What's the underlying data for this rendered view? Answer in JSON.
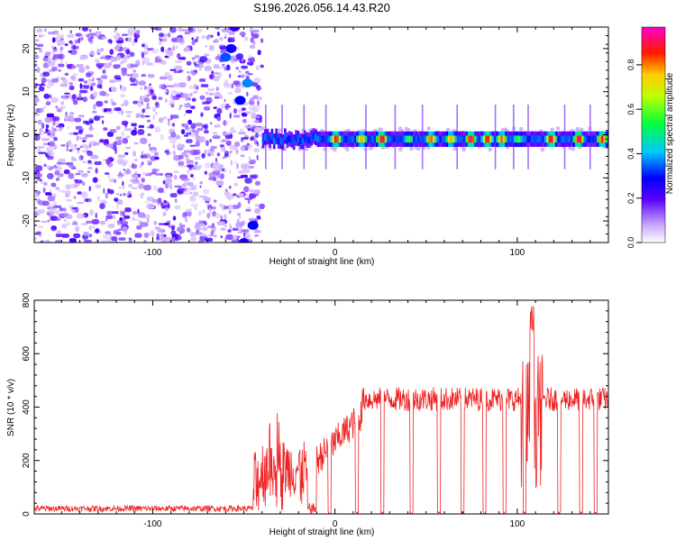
{
  "title": "S196.2026.056.14.43.R20",
  "spectrogram": {
    "type": "heatmap",
    "xlabel": "Height of straight line (km)",
    "ylabel": "Frequency (Hz)",
    "xlim": [
      -165,
      150
    ],
    "ylim": [
      -25,
      25
    ],
    "x_ticks": [
      -100,
      0,
      100
    ],
    "x_tick_labels": [
      "-100",
      "0",
      "100"
    ],
    "y_ticks": [
      -20,
      -10,
      0,
      10,
      20
    ],
    "y_tick_labels": [
      "-20",
      "-10",
      "0",
      "10",
      "20"
    ],
    "noise_region_x": [
      -165,
      -40
    ],
    "signal_region_x": [
      -40,
      150
    ],
    "signal_frequency_hz": -1,
    "peak_amplitude_points": [
      {
        "x": -23,
        "amp": 0.35
      },
      {
        "x": -10,
        "amp": 0.35
      },
      {
        "x": 0,
        "amp": 0.9
      },
      {
        "x": 14,
        "amp": 0.8
      },
      {
        "x": 25,
        "amp": 0.95
      },
      {
        "x": 40,
        "amp": 0.6
      },
      {
        "x": 52,
        "amp": 0.85
      },
      {
        "x": 63,
        "amp": 0.8
      },
      {
        "x": 74,
        "amp": 0.95
      },
      {
        "x": 83,
        "amp": 0.9
      },
      {
        "x": 91,
        "amp": 0.85
      },
      {
        "x": 100,
        "amp": 0.6
      },
      {
        "x": 110,
        "amp": 0.35
      },
      {
        "x": 118,
        "amp": 0.95
      },
      {
        "x": 133,
        "amp": 0.95
      },
      {
        "x": 146,
        "amp": 0.9
      }
    ]
  },
  "colorbar": {
    "label": "Normalized spectral amplitude",
    "range": [
      0,
      0.97
    ],
    "ticks": [
      0,
      0.2,
      0.4,
      0.6,
      0.8
    ],
    "tick_labels": [
      "0.0",
      "0.2",
      "0.4",
      "0.6",
      "0.8"
    ],
    "colormap": [
      "#ffffff",
      "#8a00ff",
      "#0000ff",
      "#00ffff",
      "#00ff00",
      "#ffff00",
      "#ff0000",
      "#ff00ff"
    ]
  },
  "snr": {
    "type": "line",
    "xlabel": "Height of straight line (km)",
    "ylabel": "SNR (10 * v/v)",
    "xlim": [
      -165,
      150
    ],
    "ylim": [
      0,
      800
    ],
    "x_ticks": [
      -100,
      0,
      100
    ],
    "x_tick_labels": [
      "-100",
      "0",
      "100"
    ],
    "y_ticks": [
      0,
      200,
      400,
      600,
      800
    ],
    "y_tick_labels": [
      "0",
      "200",
      "400",
      "600",
      "800"
    ],
    "line_color": "#ee2222",
    "noise_level": 15,
    "onset_x": -45,
    "plateau_start_x": 15,
    "plateau_level": 430,
    "spike_x": 108,
    "spike_value": 800,
    "dropouts_x": [
      -3,
      12,
      26,
      42,
      57,
      70,
      82,
      93,
      104,
      123,
      135,
      143
    ]
  }
}
